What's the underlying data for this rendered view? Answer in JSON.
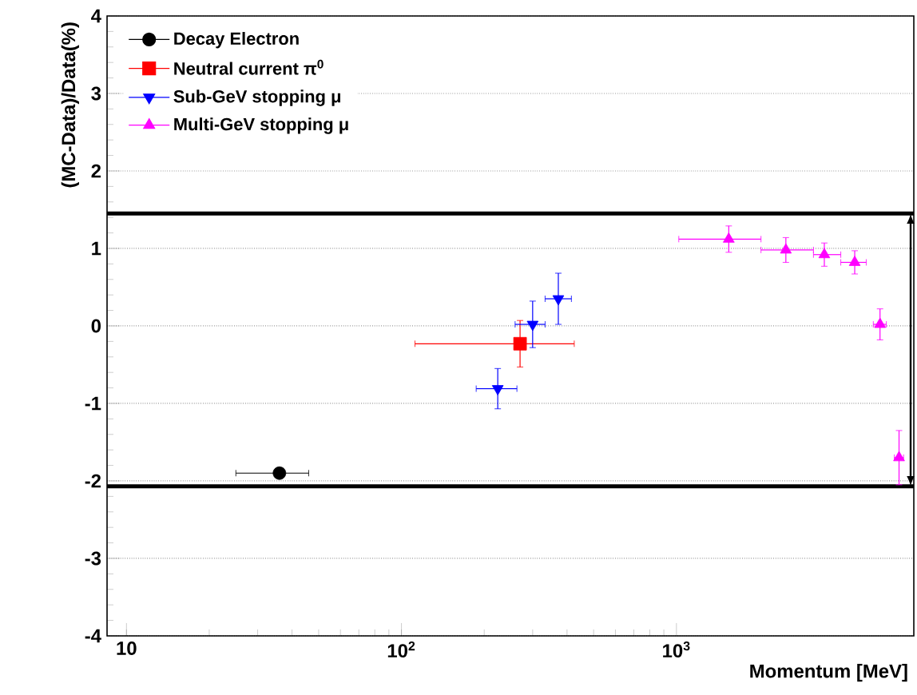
{
  "chart_data": {
    "type": "scatter",
    "xlabel": "Momentum [MeV]",
    "ylabel": "(MC-Data)/Data(%)",
    "log": "x",
    "xlim": [
      8.5,
      7300
    ],
    "xticks": [
      10,
      {
        "value": 100,
        "label": "10$^{2}$"
      },
      {
        "value": 1000,
        "label": "10$^{3}$"
      }
    ],
    "ylim": [
      -4,
      4
    ],
    "yticks": [
      -4,
      -3,
      -2,
      -1,
      0,
      1,
      2,
      3,
      4
    ],
    "grid": "y",
    "legend": "top left",
    "ref_lines": [
      {
        "axis": "y",
        "value": 1.45,
        "color": "#000000"
      },
      {
        "axis": "y",
        "value": -2.07,
        "color": "#000000"
      }
    ],
    "series": [
      {
        "name": "Decay Electron",
        "color": "#000000",
        "marker": "circle",
        "x": [
          36
        ],
        "values": [
          -1.9
        ],
        "xerrors": [
          [
            25,
            46
          ]
        ],
        "errors": [
          0.05
        ]
      },
      {
        "name": "Neutral current π$^{0}$",
        "color": "#ff0000",
        "marker": "square",
        "x": [
          270
        ],
        "values": [
          -0.23
        ],
        "xerrors": [
          [
            112,
            425
          ]
        ],
        "errors": [
          0.3
        ]
      },
      {
        "name": "Sub-GeV stopping μ",
        "color": "#0000ff",
        "marker": "triangle down",
        "x": [
          224,
          300,
          372
        ],
        "values": [
          -0.81,
          0.02,
          0.35
        ],
        "xerrors": [
          [
            187,
            263
          ],
          [
            259,
            333
          ],
          [
            333,
            415
          ]
        ],
        "errors": [
          0.26,
          0.3,
          0.33
        ]
      },
      {
        "name": "Multi-GeV stopping μ",
        "color": "#ff00ff",
        "marker": "triangle",
        "x": [
          1550,
          2500,
          3450,
          4450,
          5500,
          6450
        ],
        "values": [
          1.12,
          0.98,
          0.92,
          0.82,
          0.02,
          -1.7
        ],
        "xerrors": [
          [
            1020,
            2030
          ],
          [
            2030,
            3150
          ],
          [
            3150,
            3960
          ],
          [
            3960,
            4900
          ],
          [
            5200,
            5800
          ],
          [
            6200,
            6700
          ]
        ],
        "errors": [
          0.17,
          0.16,
          0.15,
          0.15,
          0.2,
          0.35
        ]
      }
    ]
  }
}
